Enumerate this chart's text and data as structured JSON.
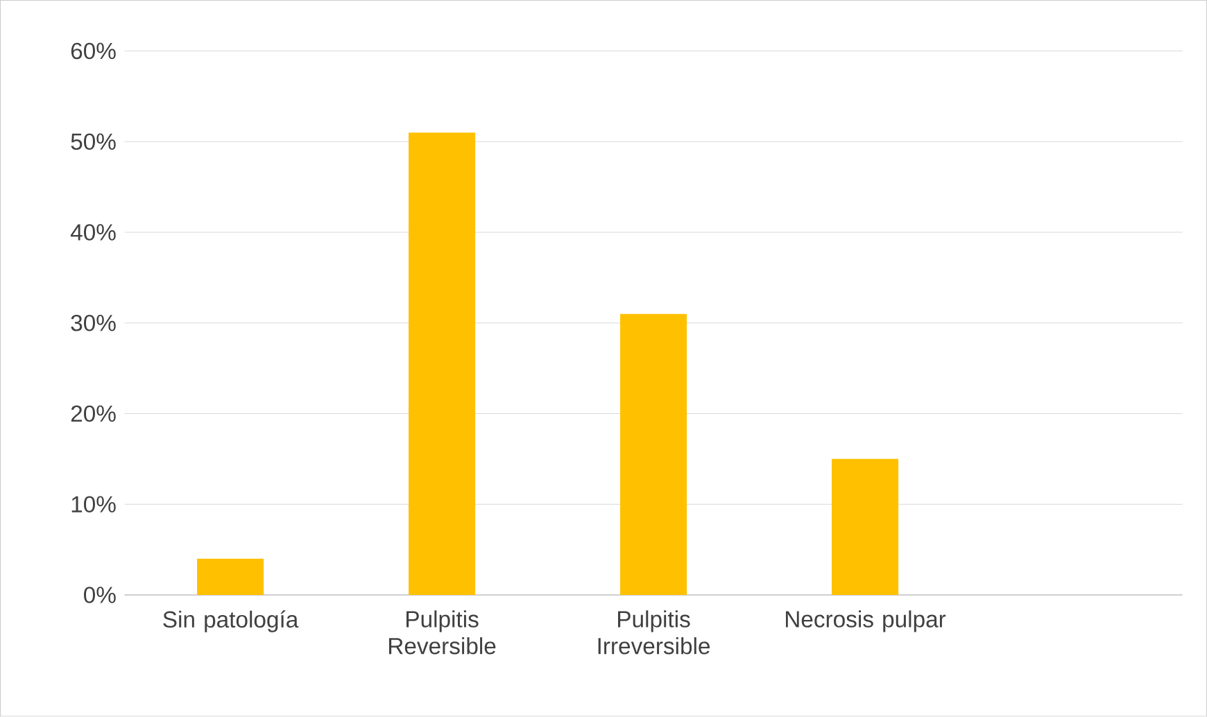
{
  "chart_data": {
    "type": "bar",
    "categories": [
      "Sin patología",
      "Pulpitis Reversible",
      "Pulpitis Irreversible",
      "Necrosis pulpar",
      null
    ],
    "values": [
      4,
      51,
      31,
      15,
      null
    ],
    "color": "#ffc000",
    "ylim": [
      0,
      60
    ],
    "yticks": [
      {
        "value": 0,
        "label": "0%"
      },
      {
        "value": 10,
        "label": "10%"
      },
      {
        "value": 20,
        "label": "20%"
      },
      {
        "value": 30,
        "label": "30%"
      },
      {
        "value": 40,
        "label": "40%"
      },
      {
        "value": 50,
        "label": "50%"
      },
      {
        "value": 60,
        "label": "60%"
      }
    ],
    "grid": "y"
  }
}
